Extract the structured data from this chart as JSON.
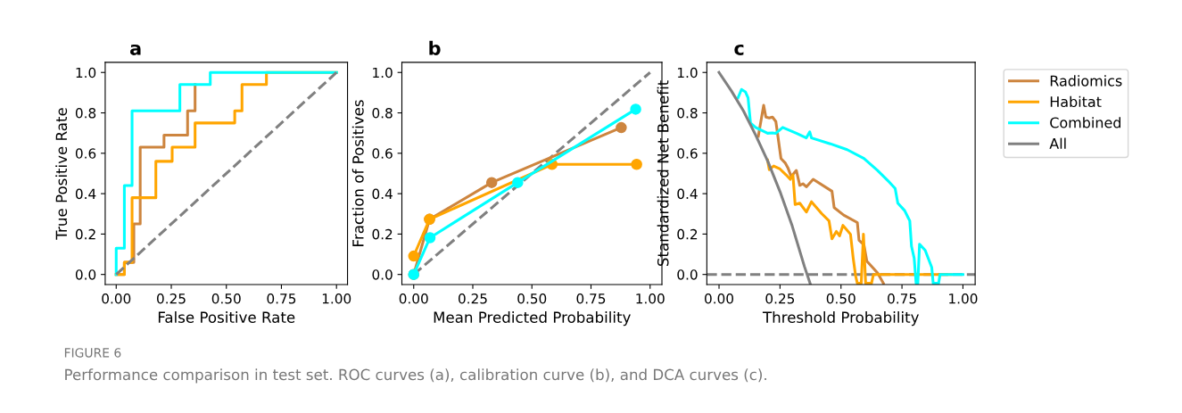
{
  "chart_data": [
    {
      "type": "line",
      "title": "a",
      "xlabel": "False Positive Rate",
      "ylabel": "True Positive Rate",
      "xlim": [
        -0.05,
        1.05
      ],
      "ylim": [
        -0.05,
        1.05
      ],
      "xticks": [
        {
          "value": 0,
          "label": "0.00"
        },
        {
          "value": 0.25,
          "label": "0.25"
        },
        {
          "value": 0.5,
          "label": "0.50"
        },
        {
          "value": 0.75,
          "label": "0.75"
        },
        {
          "value": 1,
          "label": "1.00"
        }
      ],
      "yticks": [
        {
          "value": 0,
          "label": "0.0"
        },
        {
          "value": 0.2,
          "label": "0.2"
        },
        {
          "value": 0.4,
          "label": "0.4"
        },
        {
          "value": 0.6,
          "label": "0.6"
        },
        {
          "value": 0.8,
          "label": "0.8"
        },
        {
          "value": 1,
          "label": "1.0"
        }
      ],
      "grid": false,
      "legend": false,
      "annotations": [
        "FIGURE 6",
        "Performance comparison in test set. ROC curves (a), calibration curve (b), and DCA curves (c)."
      ],
      "series": [
        {
          "color": "#cd853f",
          "line_style": "solid",
          "marker": "none",
          "x": [
            0,
            0.037,
            0.037,
            0.08,
            0.08,
            0.109,
            0.109,
            0.217,
            0.217,
            0.324,
            0.324,
            0.358,
            0.358
          ],
          "values": [
            0,
            0,
            0.06,
            0.06,
            0.25,
            0.25,
            0.63,
            0.63,
            0.69,
            0.69,
            0.81,
            0.81,
            0.94
          ]
        },
        {
          "color": "#ffa500",
          "line_style": "solid",
          "marker": "none",
          "x": [
            0,
            0.037,
            0.037,
            0.072,
            0.072,
            0.18,
            0.18,
            0.254,
            0.254,
            0.358,
            0.358,
            0.538,
            0.538,
            0.571,
            0.571,
            0.682,
            0.682,
            1.0
          ],
          "values": [
            0,
            0,
            0.06,
            0.06,
            0.38,
            0.38,
            0.56,
            0.56,
            0.63,
            0.63,
            0.75,
            0.75,
            0.81,
            0.81,
            0.94,
            0.94,
            1.0,
            1.0
          ]
        },
        {
          "color": "#00ffff",
          "line_style": "solid",
          "marker": "none",
          "x": [
            0,
            0,
            0.037,
            0.037,
            0.072,
            0.072,
            0.289,
            0.289,
            0.427,
            0.427,
            1.0
          ],
          "values": [
            0,
            0.13,
            0.13,
            0.44,
            0.44,
            0.81,
            0.81,
            0.94,
            0.94,
            1.0,
            1.0
          ]
        },
        {
          "color": "#808080",
          "line_style": "dashed",
          "marker": "none",
          "x": [
            0,
            1
          ],
          "values": [
            0,
            1
          ]
        }
      ]
    },
    {
      "type": "line",
      "title": "b",
      "xlabel": "Mean Predicted Probability",
      "ylabel": "Fraction of Positives",
      "xlim": [
        -0.05,
        1.05
      ],
      "ylim": [
        -0.05,
        1.05
      ],
      "xticks": [
        {
          "value": 0,
          "label": "0.00"
        },
        {
          "value": 0.25,
          "label": "0.25"
        },
        {
          "value": 0.5,
          "label": "0.50"
        },
        {
          "value": 0.75,
          "label": "0.75"
        },
        {
          "value": 1,
          "label": "1.00"
        }
      ],
      "yticks": [
        {
          "value": 0,
          "label": "0.0"
        },
        {
          "value": 0.2,
          "label": "0.2"
        },
        {
          "value": 0.4,
          "label": "0.4"
        },
        {
          "value": 0.6,
          "label": "0.6"
        },
        {
          "value": 0.8,
          "label": "0.8"
        },
        {
          "value": 1,
          "label": "1.0"
        }
      ],
      "grid": false,
      "legend": false,
      "series": [
        {
          "color": "#808080",
          "line_style": "dashed",
          "marker": "none",
          "x": [
            0,
            1
          ],
          "values": [
            0,
            1
          ]
        },
        {
          "color": "#cd853f",
          "line_style": "solid",
          "marker": "circle",
          "x": [
            0,
            0.067,
            0.33,
            0.878
          ],
          "values": [
            0,
            0.273,
            0.455,
            0.727
          ]
        },
        {
          "color": "#ffa500",
          "line_style": "solid",
          "marker": "circle",
          "x": [
            0,
            0.067,
            0.585,
            0.943
          ],
          "values": [
            0.091,
            0.273,
            0.545,
            0.545
          ]
        },
        {
          "color": "#00ffff",
          "line_style": "solid",
          "marker": "circle",
          "x": [
            0,
            0.069,
            0.44,
            0.939
          ],
          "values": [
            0,
            0.182,
            0.455,
            0.818
          ]
        }
      ]
    },
    {
      "type": "line",
      "title": "c",
      "xlabel": "Threshold Probability",
      "ylabel": "Standardized Net Benefit",
      "xlim": [
        -0.05,
        1.05
      ],
      "ylim": [
        -0.05,
        1.05
      ],
      "xticks": [
        {
          "value": 0,
          "label": "0.00"
        },
        {
          "value": 0.25,
          "label": "0.25"
        },
        {
          "value": 0.5,
          "label": "0.50"
        },
        {
          "value": 0.75,
          "label": "0.75"
        },
        {
          "value": 1,
          "label": "1.00"
        }
      ],
      "yticks": [
        {
          "value": 0,
          "label": "0.0"
        },
        {
          "value": 0.2,
          "label": "0.2"
        },
        {
          "value": 0.4,
          "label": "0.4"
        },
        {
          "value": 0.6,
          "label": "0.6"
        },
        {
          "value": 0.8,
          "label": "0.8"
        },
        {
          "value": 1,
          "label": "1.0"
        }
      ],
      "grid": false,
      "legend": "right",
      "ref_lines": [
        {
          "axis": "y",
          "value": 0,
          "label": null,
          "color": "#808080",
          "line_style": "dashed"
        }
      ],
      "series": [
        {
          "name": "Radiomics",
          "color": "#cd853f",
          "line_style": "solid",
          "marker": "none",
          "x": [
            0.161,
            0.183,
            0.192,
            0.206,
            0.219,
            0.233,
            0.254,
            0.272,
            0.282,
            0.296,
            0.317,
            0.331,
            0.344,
            0.358,
            0.386,
            0.463,
            0.472,
            0.511,
            0.567,
            0.574,
            0.594,
            0.606,
            0.65,
            0.674
          ],
          "values": [
            0.684,
            0.838,
            0.779,
            0.775,
            0.779,
            0.757,
            0.574,
            0.551,
            0.529,
            0.485,
            0.515,
            0.441,
            0.449,
            0.434,
            0.471,
            0.412,
            0.331,
            0.294,
            0.257,
            0.169,
            0.147,
            0.066,
            0.007,
            -0.044
          ]
        },
        {
          "name": "Habitat",
          "color": "#ffa500",
          "line_style": "solid",
          "marker": "none",
          "x": [
            0.199,
            0.206,
            0.224,
            0.25,
            0.275,
            0.292,
            0.303,
            0.312,
            0.331,
            0.358,
            0.379,
            0.421,
            0.451,
            0.463,
            0.481,
            0.494,
            0.508,
            0.539,
            0.55,
            0.56,
            0.567,
            0.583,
            0.592,
            0.601,
            0.625,
            0.633,
            0.95
          ],
          "values": [
            0.566,
            0.519,
            0.537,
            0.522,
            0.493,
            0.471,
            0.493,
            0.346,
            0.353,
            0.309,
            0.36,
            0.301,
            0.265,
            0.176,
            0.213,
            0.191,
            0.243,
            0.199,
            0.081,
            -0.007,
            -0.044,
            -0.044,
            0.199,
            -0.044,
            -0.044,
            0,
            0
          ]
        },
        {
          "name": "Combined",
          "color": "#00ffff",
          "line_style": "solid",
          "marker": "none",
          "x": [
            0.078,
            0.092,
            0.108,
            0.119,
            0.129,
            0.15,
            0.199,
            0.219,
            0.233,
            0.261,
            0.317,
            0.358,
            0.372,
            0.379,
            0.456,
            0.525,
            0.594,
            0.65,
            0.699,
            0.722,
            0.733,
            0.761,
            0.782,
            0.789,
            0.8,
            0.808,
            0.815,
            0.822,
            0.845,
            0.872,
            0.878,
            0.9,
            0.906,
            1.0
          ],
          "values": [
            0.875,
            0.916,
            0.904,
            0.875,
            0.75,
            0.728,
            0.699,
            0.701,
            0.699,
            0.728,
            0.699,
            0.676,
            0.706,
            0.676,
            0.647,
            0.618,
            0.574,
            0.515,
            0.456,
            0.426,
            0.353,
            0.316,
            0.265,
            0.14,
            0.081,
            -0.044,
            -0.044,
            0.15,
            0.12,
            0.035,
            -0.044,
            -0.044,
            0,
            0
          ]
        },
        {
          "name": "All",
          "color": "#808080",
          "line_style": "solid",
          "marker": "none",
          "x": [
            0,
            0.05,
            0.1,
            0.15,
            0.2,
            0.25,
            0.3,
            0.35,
            0.375
          ],
          "values": [
            1.0,
            0.91,
            0.81,
            0.69,
            0.56,
            0.41,
            0.24,
            0.04,
            -0.05
          ]
        }
      ]
    }
  ]
}
